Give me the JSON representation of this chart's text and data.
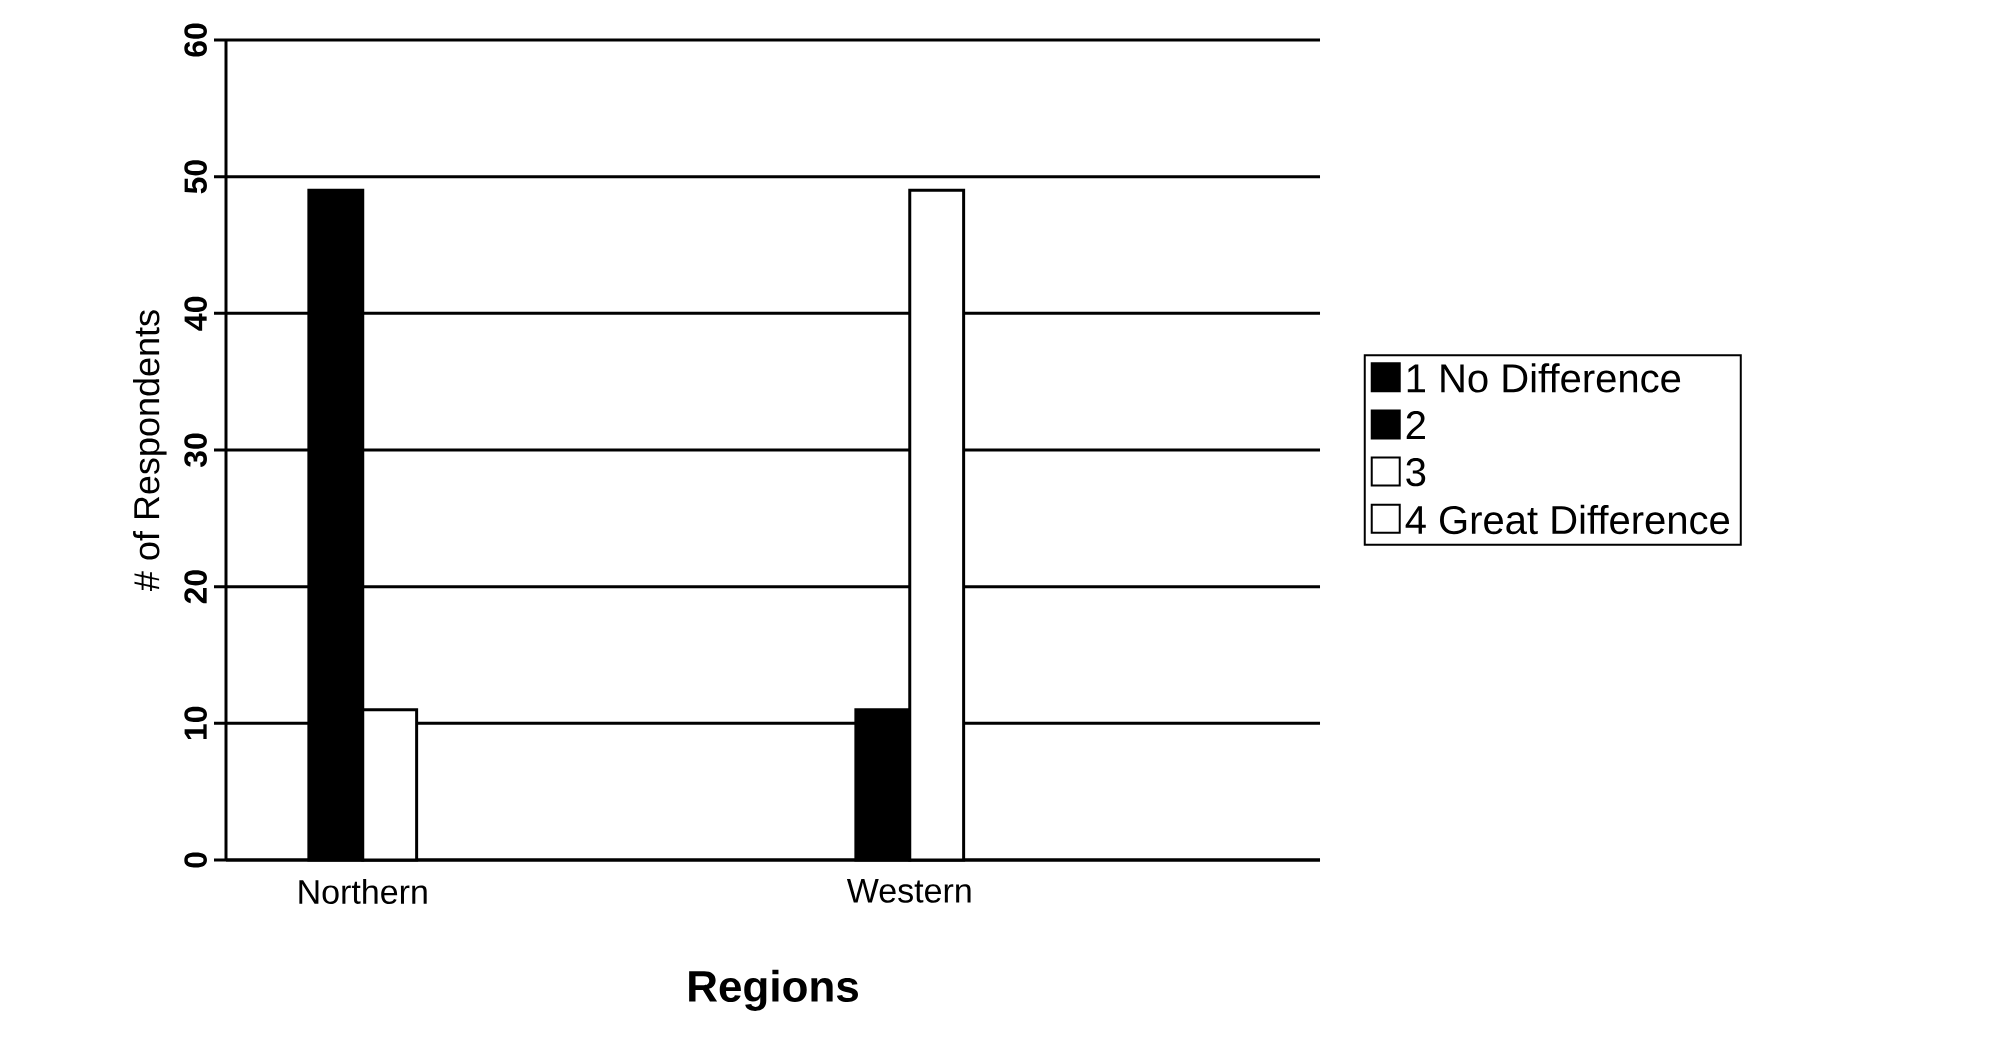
{
  "chart_data": {
    "type": "bar",
    "xlabel": "Regions",
    "ylabel": "# of Respondents",
    "categories": [
      "Northern",
      null,
      "Western",
      null
    ],
    "series": [
      {
        "name": "1 No Difference",
        "color": "#000000",
        "values": [
          null,
          null,
          null,
          null
        ]
      },
      {
        "name": "2",
        "color": "#000000",
        "values": [
          49,
          null,
          11,
          null
        ]
      },
      {
        "name": "3",
        "color": "#ffffff",
        "values": [
          11,
          null,
          49,
          null
        ]
      },
      {
        "name": "4 Great Difference",
        "color": "#ffffff",
        "values": [
          null,
          null,
          null,
          null
        ]
      }
    ],
    "ylim": [
      0,
      60
    ],
    "yticks": [
      0,
      10,
      20,
      30,
      40,
      50,
      60
    ],
    "grid": "y",
    "legend": "right"
  }
}
